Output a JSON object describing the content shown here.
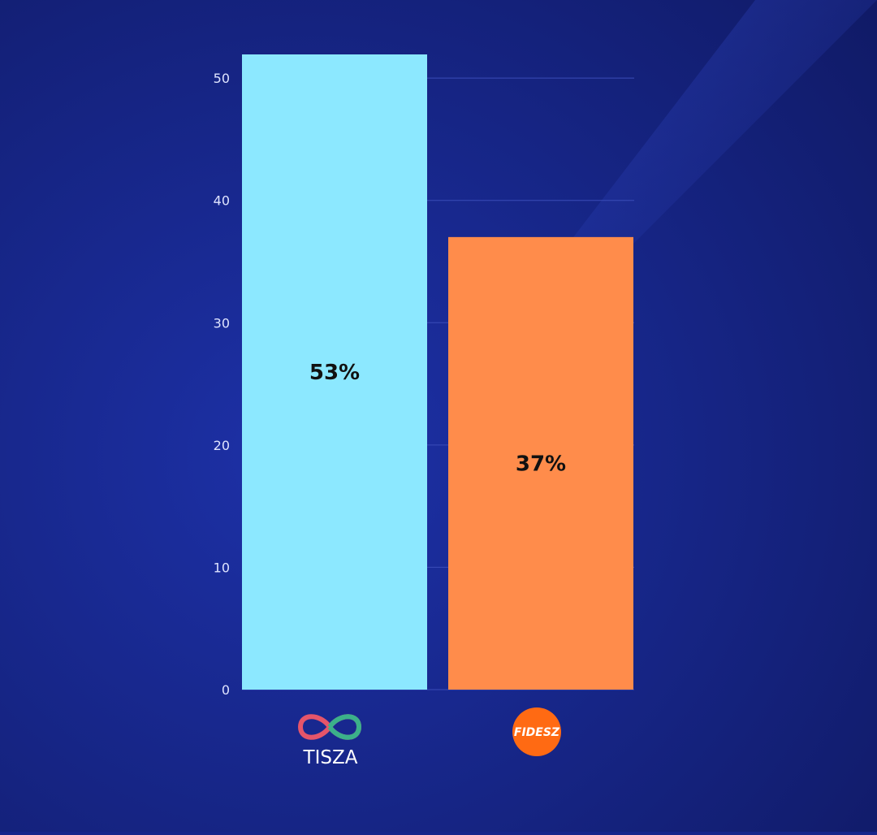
{
  "colors": {
    "background_dark": "#121d6a",
    "background_light": "#1f35b0",
    "tisza": "#8ce8ff",
    "fidesz": "#ff8c4b",
    "gridline": "#3a4cb8"
  },
  "chart_data": {
    "type": "bar",
    "title": "",
    "xlabel": "",
    "ylabel": "",
    "ylim": [
      0,
      52
    ],
    "yticks": [
      0,
      10,
      20,
      30,
      40,
      50
    ],
    "categories": [
      "TISZA",
      "FIDESZ"
    ],
    "values": [
      53,
      37
    ],
    "value_labels": [
      "53%",
      "37%"
    ],
    "grid": true,
    "legend": "none"
  },
  "logos": {
    "tisza_icon": "infinity-loop-icon",
    "fidesz_icon": "orange-circle-icon"
  }
}
